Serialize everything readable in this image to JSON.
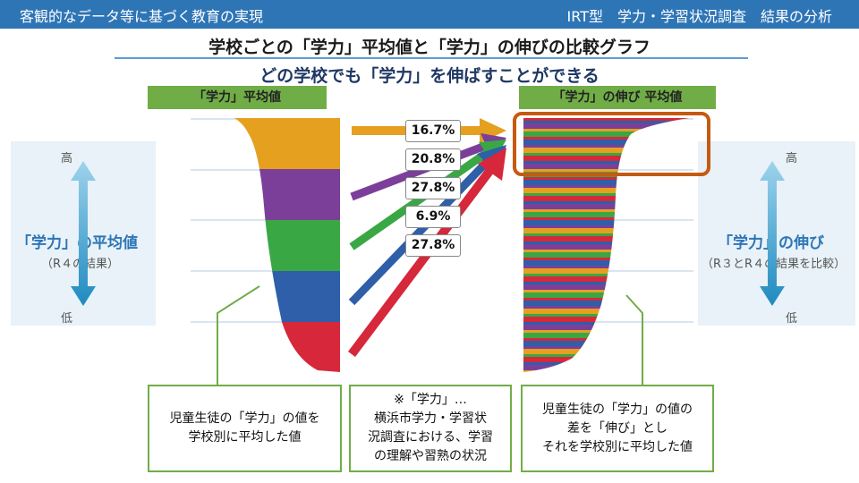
{
  "header": {
    "left": "客観的なデータ等に基づく教育の実現",
    "right": "IRT型　学力・学習状況調査　結果の分析"
  },
  "title": "学校ごとの「学力」平均値と「学力」の伸びの比較グラフ",
  "subtitle": "どの学校でも「学力」を伸ばすことができる",
  "left_tag": "「学力」平均値",
  "right_tag": "「学力」の伸び 平均値",
  "left_side": {
    "title": "「学力」の平均値",
    "sub": "（R４の結果）",
    "high": "高",
    "low": "低"
  },
  "right_side": {
    "title": "「学力」の伸び",
    "sub": "（R３とR４の結果を比較）",
    "high": "高",
    "low": "低"
  },
  "percentages": [
    "16.7%",
    "20.8%",
    "27.8%",
    "6.9%",
    "27.8%"
  ],
  "colors": {
    "orange": "#e5a020",
    "purple": "#7b3f9a",
    "green": "#3aa745",
    "blue": "#2e5fa8",
    "red": "#d6283a",
    "highlight": "#c55a11",
    "accent": "#70ad47"
  },
  "notes": {
    "left": "児童生徒の「学力」の値を\n学校別に平均した値",
    "middle": "※「学力」…\n横浜市学力・学習状\n況調査における、学習\nの理解や習熟の状況",
    "right": "児童生徒の「学力」の値の\n差を「伸び」とし\nそれを学校別に平均した値"
  }
}
